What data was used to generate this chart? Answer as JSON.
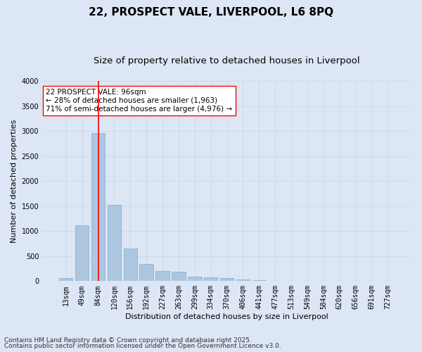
{
  "title1": "22, PROSPECT VALE, LIVERPOOL, L6 8PQ",
  "title2": "Size of property relative to detached houses in Liverpool",
  "xlabel": "Distribution of detached houses by size in Liverpool",
  "ylabel": "Number of detached properties",
  "categories": [
    "13sqm",
    "49sqm",
    "84sqm",
    "120sqm",
    "156sqm",
    "192sqm",
    "227sqm",
    "263sqm",
    "299sqm",
    "334sqm",
    "370sqm",
    "406sqm",
    "441sqm",
    "477sqm",
    "513sqm",
    "549sqm",
    "584sqm",
    "620sqm",
    "656sqm",
    "691sqm",
    "727sqm"
  ],
  "values": [
    55,
    1110,
    2960,
    1530,
    650,
    340,
    195,
    185,
    90,
    75,
    55,
    35,
    15,
    10,
    5,
    3,
    2,
    2,
    1,
    1,
    1
  ],
  "bar_color": "#adc6e0",
  "bar_edge_color": "#7aafd4",
  "vline_x_index": 2,
  "vline_color": "red",
  "annotation_text": "22 PROSPECT VALE: 96sqm\n← 28% of detached houses are smaller (1,963)\n71% of semi-detached houses are larger (4,976) →",
  "annotation_box_color": "white",
  "annotation_box_edge_color": "red",
  "ylim": [
    0,
    4000
  ],
  "yticks": [
    0,
    500,
    1000,
    1500,
    2000,
    2500,
    3000,
    3500,
    4000
  ],
  "grid_color": "#c8d4e8",
  "bg_color": "#dce6f5",
  "footer1": "Contains HM Land Registry data © Crown copyright and database right 2025.",
  "footer2": "Contains public sector information licensed under the Open Government Licence v3.0.",
  "title_fontsize": 11,
  "subtitle_fontsize": 9.5,
  "label_fontsize": 8,
  "tick_fontsize": 7,
  "footer_fontsize": 6.5
}
